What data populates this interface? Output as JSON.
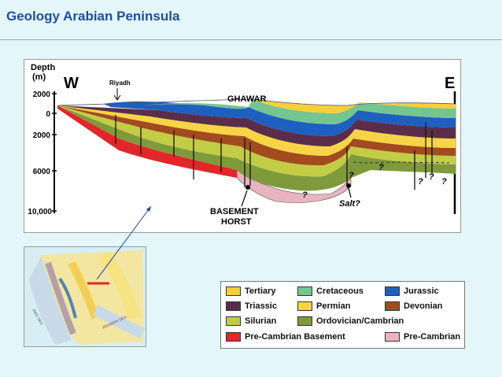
{
  "slide": {
    "title": "Geology Arabian Peninsula"
  },
  "section": {
    "depth_label_line1": "Depth",
    "depth_label_line2": "(m)",
    "depth_ticks": [
      "2000",
      "0",
      "2000",
      "6000",
      "10,000"
    ],
    "west_label": "W",
    "east_label": "E",
    "riyadh_label": "Riyadh",
    "ghawar_label": "GHAWAR",
    "basement_label_line1": "BASEMENT",
    "basement_label_line2": "HORST",
    "salt_label": "Salt?",
    "question_mark": "?"
  },
  "map": {
    "red_sea_label": "RED SEA",
    "arabian_sea_label": "ARABIAN SEA"
  },
  "legend": {
    "items": [
      {
        "label": "Tertiary",
        "color": "#f6cf3b"
      },
      {
        "label": "Cretaceous",
        "color": "#74c58f"
      },
      {
        "label": "Jurassic",
        "color": "#1f5fbf"
      },
      {
        "label": "Triassic",
        "color": "#5a2e4a"
      },
      {
        "label": "Permian",
        "color": "#f7d445"
      },
      {
        "label": "Devonian",
        "color": "#a24b1e"
      },
      {
        "label": "Silurian",
        "color": "#c3cc45"
      },
      {
        "label": "Ordovician/Cambrian",
        "color": "#7f9a3a"
      },
      {
        "label": "Pre-Cambrian Basement",
        "color": "#e2262a"
      },
      {
        "label": "Pre-Cambrian",
        "color": "#e9b4c1"
      }
    ]
  }
}
